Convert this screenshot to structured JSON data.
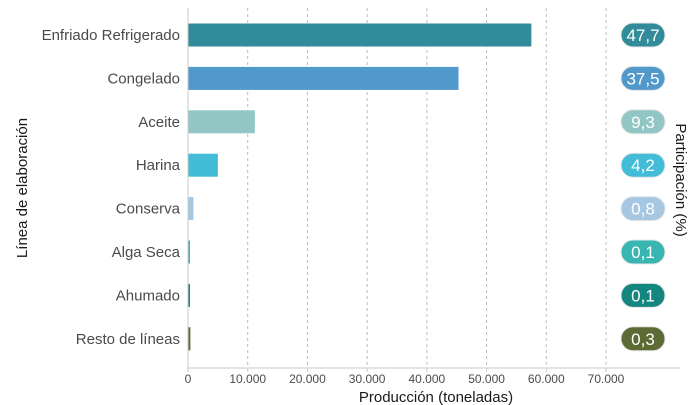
{
  "chart_data": {
    "type": "bar",
    "orientation": "horizontal",
    "categories": [
      "Enfriado Refrigerado",
      "Congelado",
      "Aceite",
      "Harina",
      "Conserva",
      "Alga Seca",
      "Ahumado",
      "Resto de líneas"
    ],
    "values": [
      57500,
      45300,
      11200,
      5000,
      900,
      100,
      100,
      400
    ],
    "participation": [
      "47,7",
      "37,5",
      "9,3",
      "4,2",
      "0,8",
      "0,1",
      "0,1",
      "0,3"
    ],
    "colors": [
      "#318b98",
      "#5299cb",
      "#92c6c5",
      "#43bcd7",
      "#a5c7e1",
      "#3ab6b2",
      "#13877f",
      "#5c6b34"
    ],
    "xlabel": "Producción (toneladas)",
    "ylabel": "Línea de elaboración",
    "right_label": "Participación (%)",
    "xlim": [
      0,
      70000
    ],
    "xticks": [
      0,
      10000,
      20000,
      30000,
      40000,
      50000,
      60000,
      70000
    ],
    "xtick_labels": [
      "0",
      "10.000",
      "20.000",
      "30.000",
      "40.000",
      "50.000",
      "60.000",
      "70.000"
    ],
    "grid": "vertical dashed"
  }
}
